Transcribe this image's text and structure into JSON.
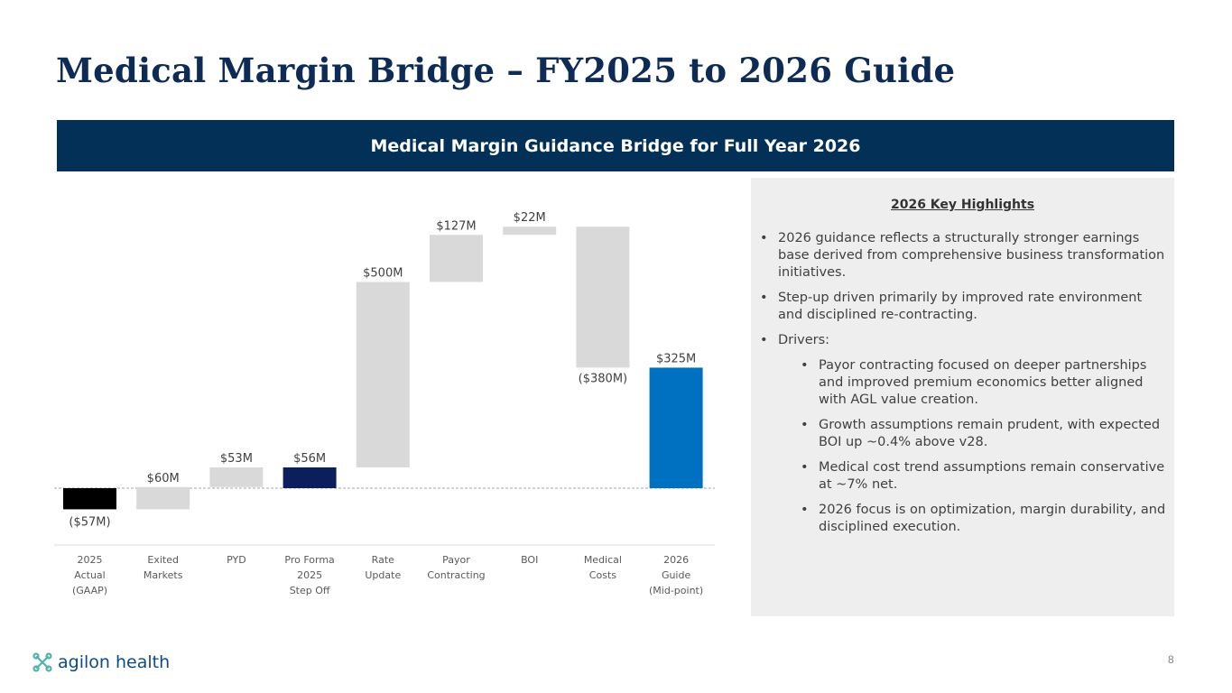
{
  "title": "Medical Margin Bridge – FY2025 to 2026 Guide",
  "banner": "Medical Margin Guidance Bridge for Full Year 2026",
  "highlights": {
    "title": "2026 Key Highlights",
    "bullets": [
      "2026 guidance reflects a structurally stronger earnings base derived from comprehensive business transformation initiatives.",
      "Step-up driven primarily by improved rate environment and disciplined re-contracting.",
      "Drivers:"
    ],
    "sub_bullets": [
      "Payor contracting focused on deeper partnerships and improved premium economics better aligned with AGL value creation.",
      "Growth assumptions remain prudent, with expected BOI up ~0.4% above v28.",
      "Medical cost trend assumptions remain conservative at ~7% net.",
      "2026 focus is on optimization, margin durability, and disciplined execution."
    ]
  },
  "logo": {
    "text": "agilon health",
    "icon": "agilon-logo-icon"
  },
  "page_number": "8",
  "colors": {
    "navy": "#033057",
    "black": "#000000",
    "gray": "#d9d9d9",
    "dark_navy": "#0b1f5c",
    "blue": "#0070c0"
  },
  "chart_data": {
    "type": "bar",
    "subtype": "waterfall",
    "units": "$M",
    "categories": [
      [
        "2025",
        "Actual",
        "(GAAP)"
      ],
      [
        "Exited",
        "Markets"
      ],
      [
        "PYD"
      ],
      [
        "Pro Forma",
        "2025",
        "Step Off"
      ],
      [
        "Rate",
        "Update"
      ],
      [
        "Payor",
        "Contracting"
      ],
      [
        "BOI"
      ],
      [
        "Medical",
        "Costs"
      ],
      [
        "2026",
        "Guide",
        "(Mid-point)"
      ]
    ],
    "steps": [
      {
        "kind": "total",
        "value": -57,
        "label": "($57M)",
        "color": "#000000"
      },
      {
        "kind": "delta",
        "value": 60,
        "label": "$60M",
        "color": "#d9d9d9"
      },
      {
        "kind": "delta",
        "value": 53,
        "label": "$53M",
        "color": "#d9d9d9"
      },
      {
        "kind": "total",
        "value": 56,
        "label": "$56M",
        "color": "#0b1f5c"
      },
      {
        "kind": "delta",
        "value": 500,
        "label": "$500M",
        "color": "#d9d9d9"
      },
      {
        "kind": "delta",
        "value": 127,
        "label": "$127M",
        "color": "#d9d9d9"
      },
      {
        "kind": "delta",
        "value": 22,
        "label": "$22M",
        "color": "#d9d9d9"
      },
      {
        "kind": "delta",
        "value": -380,
        "label": "($380M)",
        "color": "#d9d9d9"
      },
      {
        "kind": "total",
        "value": 325,
        "label": "$325M",
        "color": "#0070c0"
      }
    ],
    "ylim": [
      -100,
      750
    ],
    "baseline": 0,
    "title": "",
    "xlabel": "",
    "ylabel": ""
  }
}
